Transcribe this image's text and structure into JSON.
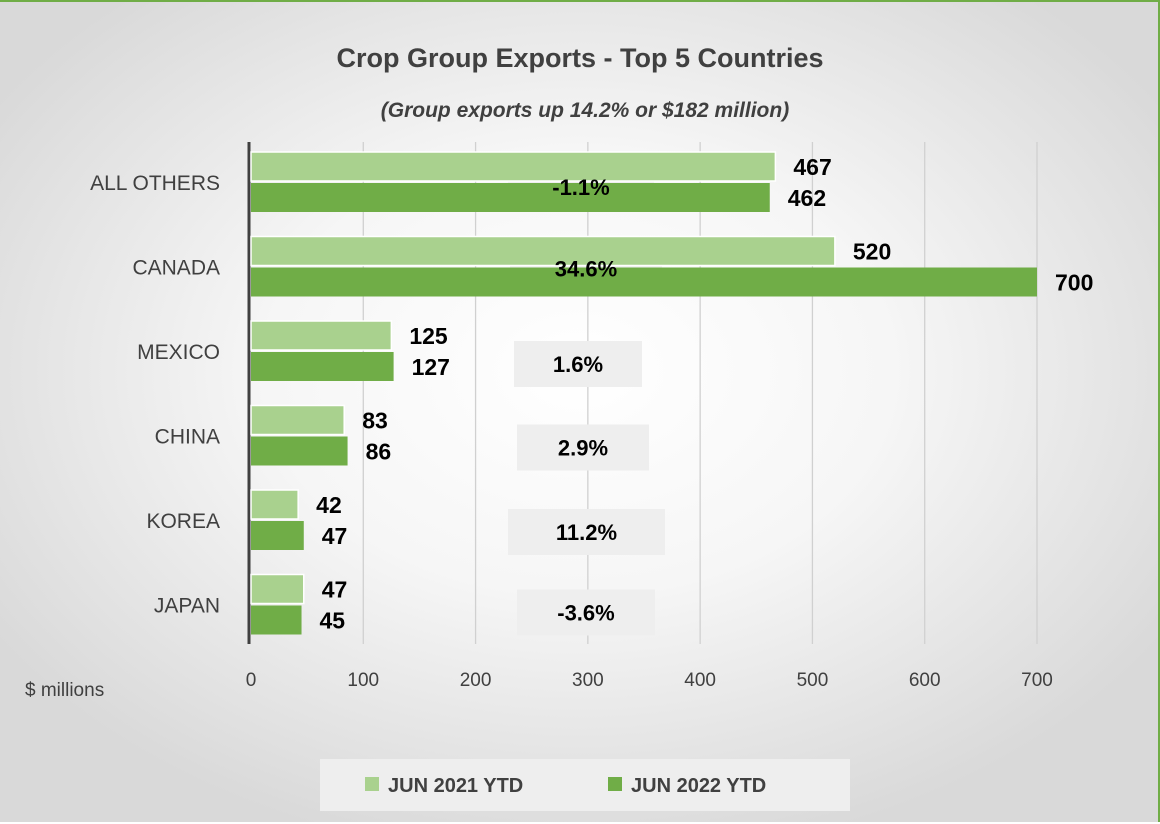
{
  "chart_data": {
    "type": "bar",
    "orientation": "horizontal",
    "title": "Crop Group Exports - Top 5 Countries",
    "subtitle": "(Group exports up 14.2% or $182 million)",
    "xlabel": "$ millions",
    "categories": [
      "ALL OTHERS",
      "CANADA",
      "MEXICO",
      "CHINA",
      "KOREA",
      "JAPAN"
    ],
    "series": [
      {
        "name": "JUN 2021 YTD",
        "values": [
          467,
          520,
          125,
          83,
          42,
          47
        ],
        "color": "#a9d18e"
      },
      {
        "name": "JUN 2022 YTD",
        "values": [
          462,
          700,
          127,
          86,
          47,
          45
        ],
        "color": "#70ad47"
      }
    ],
    "change_labels": [
      "-1.1%",
      "34.6%",
      "1.6%",
      "2.9%",
      "11.2%",
      "-3.6%"
    ],
    "xlim": [
      0,
      700
    ],
    "x_ticks": [
      "0",
      "100",
      "200",
      "300",
      "400",
      "500",
      "600",
      "700"
    ],
    "grid": true,
    "legend_position": "bottom"
  }
}
